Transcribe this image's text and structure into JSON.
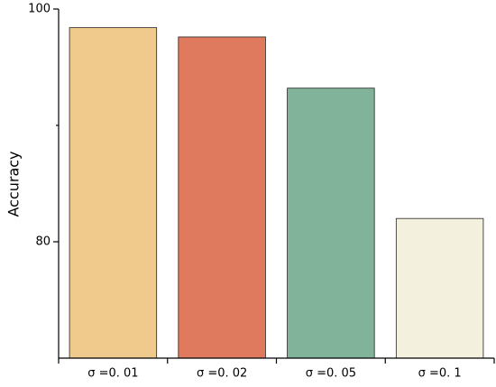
{
  "chart_data": {
    "type": "bar",
    "y_label": "Accuracy",
    "categories": [
      "σ =0. 01",
      "σ =0. 02",
      "σ =0. 05",
      "σ =0. 1"
    ],
    "values": [
      98.4,
      97.6,
      93.2,
      82.0
    ],
    "colors": [
      "#f0ca8c",
      "#e07a5f",
      "#81b29a",
      "#f4f0de"
    ],
    "ylim": [
      70,
      100
    ],
    "yticks": [
      80,
      100
    ],
    "yminorticks": [
      90
    ]
  }
}
